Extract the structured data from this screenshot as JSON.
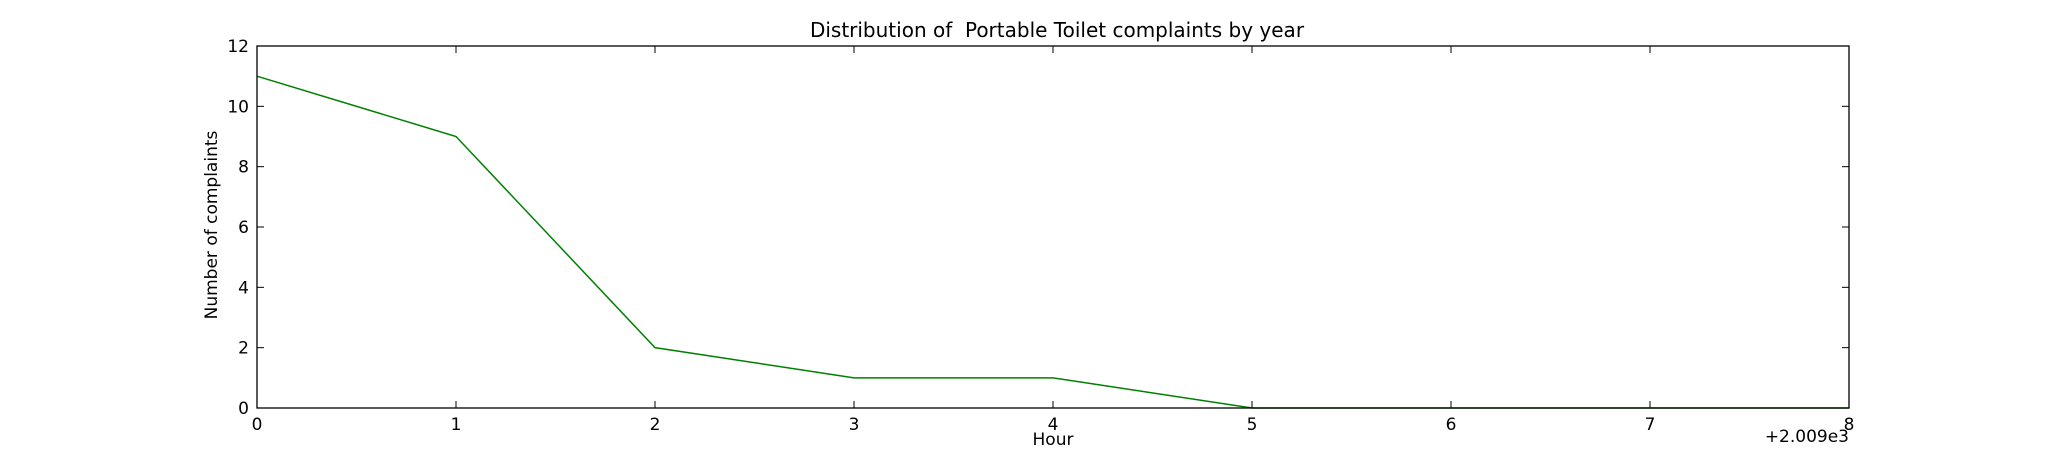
{
  "chart_data": {
    "type": "line",
    "title": "Distribution of  Portable Toilet complaints by year",
    "xlabel": "Hour",
    "ylabel": "Number of complaints",
    "x_offset_label": "+2.009e3",
    "x_offset_value": 2009,
    "xlim": [
      0,
      8
    ],
    "ylim": [
      0,
      12
    ],
    "xticks": [
      "0",
      "1",
      "2",
      "3",
      "4",
      "5",
      "6",
      "7",
      "8"
    ],
    "yticks": [
      "0",
      "2",
      "4",
      "6",
      "8",
      "10",
      "12"
    ],
    "grid": false,
    "legend": "none",
    "series": [
      {
        "color": "#008000",
        "x": [
          2009,
          2010,
          2011,
          2012,
          2013,
          2014,
          2015,
          2016,
          2017
        ],
        "y": [
          11,
          9,
          2,
          1,
          1,
          0,
          0,
          0,
          0
        ]
      }
    ]
  }
}
